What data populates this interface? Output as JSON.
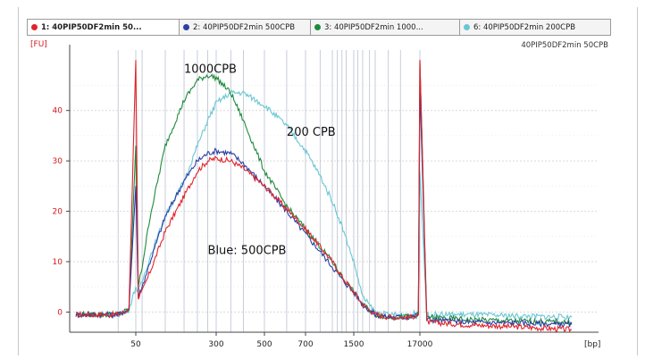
{
  "tabs": [
    {
      "label": "1: 40PIP50DF2min 50...",
      "color": "#e0242b",
      "active": true
    },
    {
      "label": "2: 40PIP50DF2min 500CPB",
      "color": "#2b3fa6",
      "active": false
    },
    {
      "label": "3: 40PIP50DF2min 1000...",
      "color": "#1f8a3c",
      "active": false
    },
    {
      "label": "6: 40PIP50DF2min 200CPB",
      "color": "#69c6d6",
      "active": false
    }
  ],
  "chart_data": {
    "type": "line",
    "title": "40PIP50DF2min 50CPB",
    "ylabel": "[FU]",
    "xlabel": "[bp]",
    "ylim": [
      -4,
      52
    ],
    "x_scale": "categorical-log",
    "y_ticks": [
      0,
      10,
      20,
      30,
      40
    ],
    "x_ticks": [
      "50",
      "300",
      "500",
      "700",
      "1500",
      "17000"
    ],
    "x_tick_positions": [
      50,
      300,
      500,
      700,
      1500,
      17000
    ],
    "grid": true,
    "markers": [
      {
        "name": "lower marker",
        "x": 50,
        "peak": 50
      },
      {
        "name": "upper marker",
        "x": 17000,
        "peak": 50
      }
    ],
    "series": [
      {
        "name": "1: 40PIP50DF2min 50CPB",
        "color": "#e0242b",
        "x": [
          35,
          45,
          48,
          50,
          53,
          58,
          70,
          100,
          150,
          200,
          250,
          300,
          350,
          400,
          500,
          600,
          700,
          850,
          1000,
          1200,
          1500,
          2000,
          3000,
          5000,
          8000,
          12000,
          16000,
          17000,
          18000,
          25000,
          40000,
          60000
        ],
        "y": [
          -0.5,
          -0.5,
          0.5,
          50,
          3,
          4,
          8,
          16,
          23,
          28,
          30,
          30.5,
          30,
          28.5,
          25,
          20.5,
          16.5,
          13,
          10,
          7,
          4,
          1.5,
          -0.5,
          -1,
          -1,
          -1,
          -0.5,
          50,
          -2,
          -2.5,
          -3,
          -3.5
        ]
      },
      {
        "name": "2: 40PIP50DF2min 500CPB",
        "color": "#2b3fa6",
        "x": [
          35,
          45,
          48,
          50,
          53,
          58,
          70,
          100,
          150,
          200,
          250,
          300,
          350,
          400,
          500,
          600,
          700,
          850,
          1000,
          1200,
          1500,
          2000,
          3000,
          5000,
          8000,
          12000,
          16000,
          17000,
          18000,
          25000,
          40000,
          60000
        ],
        "y": [
          -0.5,
          -0.5,
          0.5,
          25,
          3,
          5,
          10,
          19,
          26,
          30,
          31.5,
          32,
          31.5,
          29.5,
          25,
          20,
          15.5,
          12,
          9,
          6.5,
          4,
          1.5,
          -0.5,
          -1,
          -1,
          -1,
          -0.5,
          45,
          -1.5,
          -2,
          -2.2,
          -2.5
        ]
      },
      {
        "name": "3: 40PIP50DF2min 1000CPB",
        "color": "#1f8a3c",
        "x": [
          35,
          45,
          48,
          50,
          53,
          58,
          70,
          100,
          150,
          200,
          250,
          300,
          350,
          400,
          500,
          600,
          700,
          850,
          1000,
          1200,
          1500,
          2000,
          3000,
          5000,
          8000,
          12000,
          16000,
          17000,
          18000,
          25000,
          40000,
          60000
        ],
        "y": [
          -0.5,
          -0.5,
          0.5,
          33,
          5,
          9,
          19,
          33,
          42,
          46,
          47,
          46.5,
          43.5,
          38,
          28,
          21,
          16.5,
          13,
          10,
          7,
          4,
          1.5,
          -0.5,
          -1,
          -1,
          -1,
          -0.5,
          50,
          -1,
          -1.5,
          -1.8,
          -2
        ]
      },
      {
        "name": "6: 40PIP50DF2min 200CPB",
        "color": "#69c6d6",
        "x": [
          35,
          45,
          48,
          50,
          53,
          58,
          70,
          100,
          150,
          200,
          250,
          300,
          350,
          400,
          500,
          600,
          700,
          850,
          1000,
          1200,
          1500,
          2000,
          3000,
          5000,
          8000,
          12000,
          16000,
          17000,
          18000,
          25000,
          40000,
          60000
        ],
        "y": [
          -0.5,
          -0.5,
          0.5,
          5,
          4,
          6,
          11,
          19,
          26,
          33,
          38,
          41.5,
          43.5,
          43.5,
          41,
          37,
          32,
          27,
          22,
          17,
          10,
          3,
          0,
          -0.5,
          -0.5,
          -0.5,
          0,
          28,
          -0.5,
          -0.5,
          -0.8,
          -1
        ]
      }
    ],
    "annotations": [
      {
        "text": "1000CPB",
        "x": 150,
        "y": 47.5
      },
      {
        "text": "200 CPB",
        "x": 600,
        "y": 35
      },
      {
        "text": "Blue: 500CPB",
        "x": 250,
        "y": 11.5
      }
    ]
  }
}
